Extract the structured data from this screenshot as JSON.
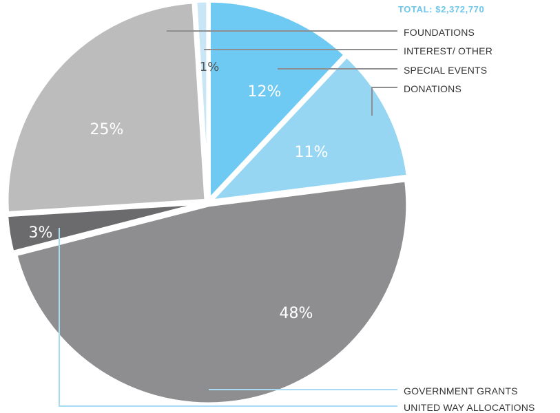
{
  "chart_data": {
    "type": "pie",
    "total_label": "TOTAL: $2,372,770",
    "slices": [
      {
        "label": "SPECIAL EVENTS",
        "value": 12,
        "display": "12%",
        "color": "#6ec9f3"
      },
      {
        "label": "DONATIONS",
        "value": 11,
        "display": "11%",
        "color": "#97d6f3"
      },
      {
        "label": "GOVERNMENT GRANTS",
        "value": 48,
        "display": "48%",
        "color": "#8e8e90"
      },
      {
        "label": "UNITED WAY ALLOCATIONS",
        "value": 3,
        "display": "3%",
        "color": "#6b6b6d"
      },
      {
        "label": "FOUNDATIONS",
        "value": 25,
        "display": "25%",
        "color": "#bcbcbd"
      },
      {
        "label": "INTEREST/ OTHER",
        "value": 1,
        "display": "1%",
        "color": "#c9e6f6"
      }
    ]
  }
}
